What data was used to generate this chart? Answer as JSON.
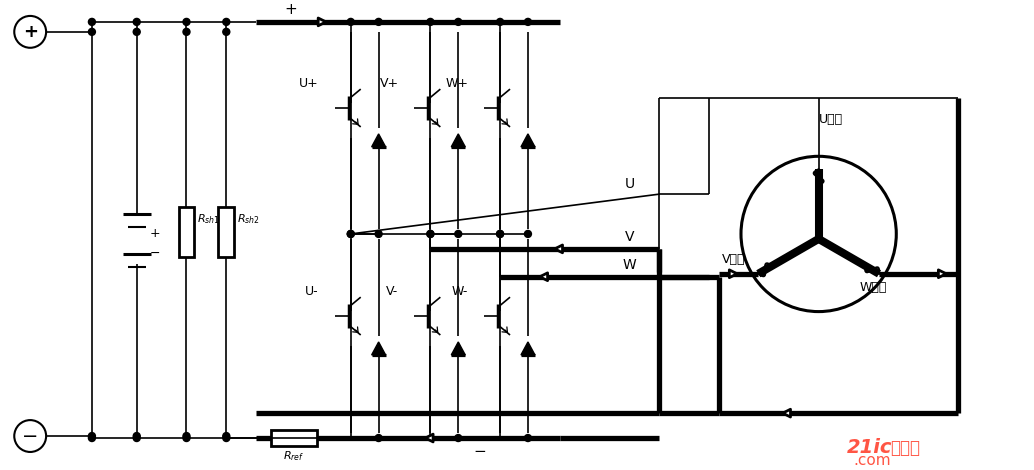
{
  "bg": "#ffffff",
  "lc": "#000000",
  "fw": 10.34,
  "fh": 4.7,
  "dpi": 100,
  "labels": {
    "U_plus": "U+",
    "V_plus": "V+",
    "W_plus": "W+",
    "U_minus": "U-",
    "V_minus": "V-",
    "W_minus": "W-",
    "U_out": "U",
    "V_out": "V",
    "W_out": "W",
    "U_coil": "U线圈",
    "V_coil": "V线圈",
    "W_coil": "W线圈",
    "R_sh1": "R_sh1",
    "R_sh2": "R_sh2",
    "R_ref": "R_ref",
    "plus": "+",
    "minus": "-",
    "wm1": "21ic",
    "wm2": "电子网",
    "wm3": ".com"
  }
}
